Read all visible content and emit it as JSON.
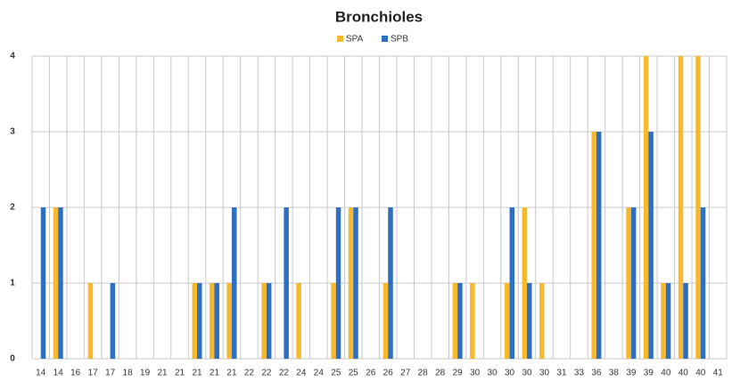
{
  "chart_data": {
    "type": "bar",
    "title": "Bronchioles",
    "categories": [
      "14",
      "14",
      "16",
      "17",
      "17",
      "18",
      "19",
      "21",
      "21",
      "21",
      "21",
      "21",
      "22",
      "22",
      "22",
      "24",
      "24",
      "25",
      "25",
      "26",
      "26",
      "27",
      "28",
      "28",
      "29",
      "30",
      "30",
      "30",
      "30",
      "30",
      "31",
      "33",
      "36",
      "38",
      "39",
      "39",
      "40",
      "40",
      "40",
      "41"
    ],
    "series": [
      {
        "name": "SPA",
        "color": "#f5b82e",
        "values": [
          0,
          2,
          0,
          1,
          0,
          0,
          0,
          0,
          0,
          1,
          1,
          1,
          0,
          1,
          0,
          1,
          0,
          1,
          2,
          0,
          1,
          0,
          0,
          0,
          1,
          1,
          0,
          1,
          2,
          1,
          0,
          0,
          3,
          0,
          2,
          4,
          1,
          4,
          4,
          0
        ]
      },
      {
        "name": "SPB",
        "color": "#2e6fbf",
        "values": [
          2,
          2,
          0,
          0,
          1,
          0,
          0,
          0,
          0,
          1,
          1,
          2,
          0,
          1,
          2,
          0,
          0,
          2,
          2,
          0,
          2,
          0,
          0,
          0,
          1,
          0,
          0,
          2,
          1,
          0,
          0,
          0,
          3,
          0,
          2,
          3,
          1,
          1,
          2,
          0
        ]
      }
    ],
    "ylim": [
      0,
      4
    ],
    "yticks": [
      0,
      1,
      2,
      3,
      4
    ],
    "grid": true
  }
}
